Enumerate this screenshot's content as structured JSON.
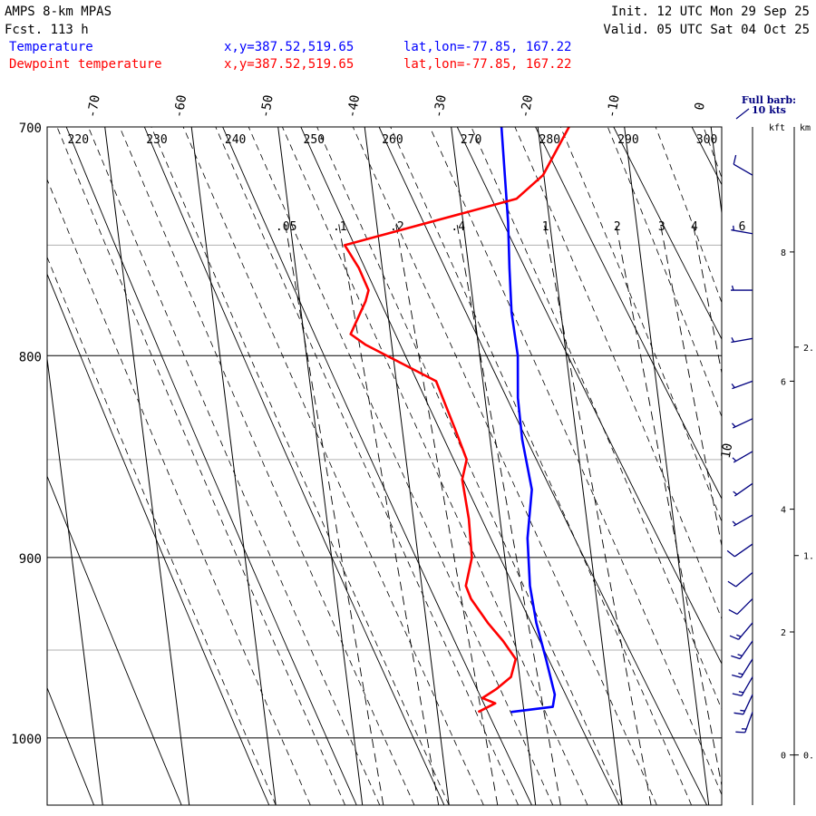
{
  "header": {
    "model": "AMPS 8-km MPAS",
    "forecast": "Fcst.  113 h",
    "init": "Init. 12 UTC Mon 29 Sep 25",
    "valid": "Valid. 05 UTC Sat 04 Oct 25"
  },
  "legend": [
    {
      "label": "Temperature",
      "xy": "x,y=387.52,519.65",
      "latlon": "lat,lon=-77.85, 167.22",
      "color": "#0000ff"
    },
    {
      "label": "Dewpoint temperature",
      "xy": "x,y=387.52,519.65",
      "latlon": "lat,lon=-77.85, 167.22",
      "color": "#ff0000"
    }
  ],
  "barb_key": {
    "line1": "Full barb:",
    "line2": "10 kts"
  },
  "height_axis": {
    "kft_label": "kft",
    "km_label": "km"
  },
  "chart_data": {
    "type": "line",
    "diagram": "skew-T log-p",
    "p_range": [
      1040,
      700
    ],
    "pressure_ticks": [
      "700",
      "800",
      "900",
      "1000"
    ],
    "isotherms": [
      "-70",
      "-60",
      "-50",
      "-40",
      "-30",
      "-20",
      "-10",
      "0"
    ],
    "theta_labels": [
      "220",
      "230",
      "240",
      "250",
      "260",
      "270",
      "280",
      "290",
      "300"
    ],
    "mixing_ratio_labels": [
      ".05",
      ".1",
      ".2",
      ".4",
      "1",
      "2",
      "3",
      "4",
      "6"
    ],
    "kft_ticks": [
      "0",
      "2",
      "4",
      "6",
      "8"
    ],
    "km_ticks": [
      "0.",
      "1.",
      "2."
    ],
    "isotherm_annotation": "10",
    "series": [
      {
        "name": "Temperature",
        "color": "#0000ff",
        "points": [
          [
            985,
            -31.5
          ],
          [
            982,
            -26.6
          ],
          [
            975,
            -26.2
          ],
          [
            955,
            -26.7
          ],
          [
            935,
            -27.3
          ],
          [
            915,
            -27.5
          ],
          [
            890,
            -27.1
          ],
          [
            865,
            -25.9
          ],
          [
            840,
            -26.3
          ],
          [
            820,
            -26.2
          ],
          [
            800,
            -25.6
          ],
          [
            780,
            -25.7
          ],
          [
            760,
            -25.3
          ],
          [
            740,
            -24.8
          ],
          [
            720,
            -24.5
          ],
          [
            700,
            -24.2
          ]
        ]
      },
      {
        "name": "Dewpoint temperature",
        "color": "#ff0000",
        "points": [
          [
            985,
            -35.3
          ],
          [
            980,
            -33.2
          ],
          [
            977,
            -34.6
          ],
          [
            972,
            -32.9
          ],
          [
            965,
            -31.0
          ],
          [
            955,
            -30.2
          ],
          [
            945,
            -31.4
          ],
          [
            935,
            -32.9
          ],
          [
            922,
            -34.5
          ],
          [
            915,
            -34.9
          ],
          [
            900,
            -33.8
          ],
          [
            880,
            -33.6
          ],
          [
            860,
            -33.8
          ],
          [
            850,
            -33.0
          ],
          [
            835,
            -33.9
          ],
          [
            812,
            -35.4
          ],
          [
            795,
            -43.0
          ],
          [
            790,
            -44.6
          ],
          [
            775,
            -42.4
          ],
          [
            770,
            -41.9
          ],
          [
            760,
            -42.7
          ],
          [
            750,
            -44.0
          ],
          [
            730,
            -23.5
          ],
          [
            720,
            -20.1
          ],
          [
            700,
            -16.4
          ]
        ]
      }
    ],
    "wind_barbs": [
      {
        "p": 985,
        "speed_kt": 15,
        "dir_deg": 200
      },
      {
        "p": 975,
        "speed_kt": 15,
        "dir_deg": 205
      },
      {
        "p": 965,
        "speed_kt": 15,
        "dir_deg": 210
      },
      {
        "p": 955,
        "speed_kt": 15,
        "dir_deg": 212
      },
      {
        "p": 945,
        "speed_kt": 15,
        "dir_deg": 215
      },
      {
        "p": 935,
        "speed_kt": 15,
        "dir_deg": 220
      },
      {
        "p": 922,
        "speed_kt": 10,
        "dir_deg": 225
      },
      {
        "p": 908,
        "speed_kt": 10,
        "dir_deg": 230
      },
      {
        "p": 893,
        "speed_kt": 10,
        "dir_deg": 235
      },
      {
        "p": 878,
        "speed_kt": 5,
        "dir_deg": 240
      },
      {
        "p": 862,
        "speed_kt": 5,
        "dir_deg": 235
      },
      {
        "p": 846,
        "speed_kt": 5,
        "dir_deg": 240
      },
      {
        "p": 830,
        "speed_kt": 5,
        "dir_deg": 245
      },
      {
        "p": 812,
        "speed_kt": 5,
        "dir_deg": 250
      },
      {
        "p": 792,
        "speed_kt": 5,
        "dir_deg": 260
      },
      {
        "p": 770,
        "speed_kt": 5,
        "dir_deg": 270
      },
      {
        "p": 745,
        "speed_kt": 5,
        "dir_deg": 280
      },
      {
        "p": 720,
        "speed_kt": 10,
        "dir_deg": 300
      }
    ]
  }
}
